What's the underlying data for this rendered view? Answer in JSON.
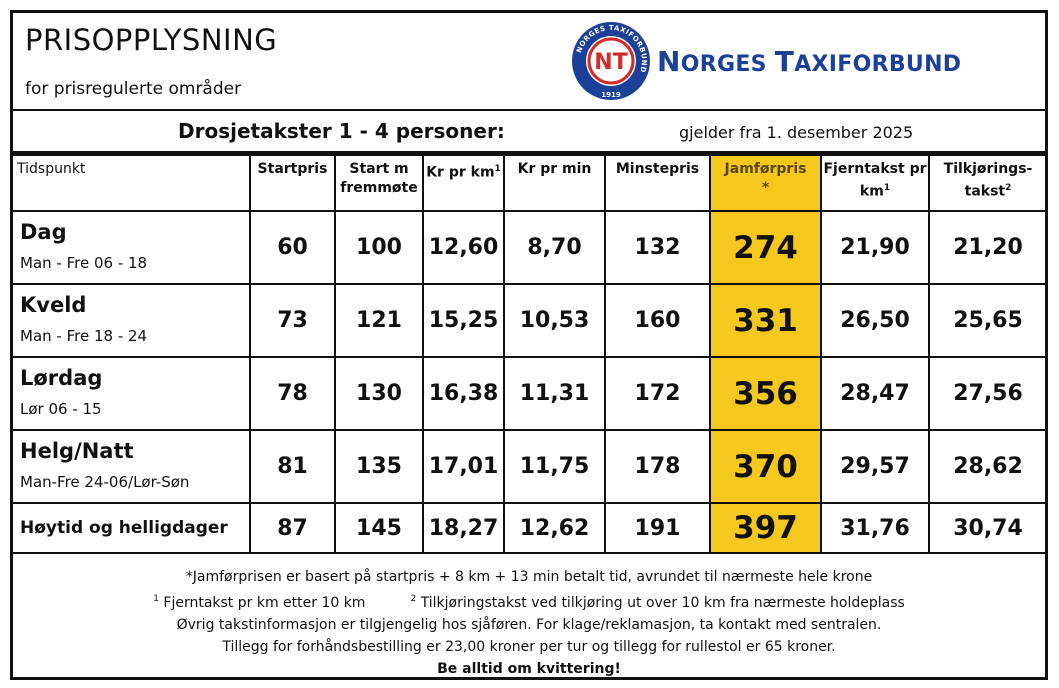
{
  "header": {
    "title": "PRISOPPLYSNING",
    "subtitle": "for prisregulerte områder",
    "brand_first": "N",
    "brand_rest_1": "ORGES ",
    "brand_t": "T",
    "brand_rest_2": "AXIFORBUND",
    "seal_ring_text": "NORGES TAXIFORBUND",
    "seal_year": "1919",
    "seal_monogram": "NT"
  },
  "subheading": {
    "title": "Drosjetakster 1 - 4 personer:",
    "valid_from": "gjelder fra 1. desember 2025"
  },
  "table": {
    "columns": [
      {
        "label": "Tidspunkt"
      },
      {
        "label": "Startpris"
      },
      {
        "label": "Start m fremmøte"
      },
      {
        "label": "Kr pr km",
        "sup": "1"
      },
      {
        "label": "Kr pr min"
      },
      {
        "label": "Minstepris"
      },
      {
        "label": "Jamførpris",
        "sub": "*"
      },
      {
        "label": "Fjerntakst pr km",
        "sup": "1"
      },
      {
        "label": "Tilkjørings-takst",
        "sup": "2"
      }
    ],
    "rows": [
      {
        "name": "Dag",
        "time": "Man - Fre 06 - 18",
        "values": [
          "60",
          "100",
          "12,60",
          "8,70",
          "132",
          "274",
          "21,90",
          "21,20"
        ]
      },
      {
        "name": "Kveld",
        "time": "Man - Fre 18 - 24",
        "values": [
          "73",
          "121",
          "15,25",
          "10,53",
          "160",
          "331",
          "26,50",
          "25,65"
        ]
      },
      {
        "name": "Lørdag",
        "time": "Lør 06 - 15",
        "values": [
          "78",
          "130",
          "16,38",
          "11,31",
          "172",
          "356",
          "28,47",
          "27,56"
        ]
      },
      {
        "name": "Helg/Natt",
        "time": "Man-Fre 24-06/Lør-Søn",
        "values": [
          "81",
          "135",
          "17,01",
          "11,75",
          "178",
          "370",
          "29,57",
          "28,62"
        ]
      },
      {
        "name": "Høytid og helligdager",
        "time": "",
        "values": [
          "87",
          "145",
          "18,27",
          "12,62",
          "191",
          "397",
          "31,76",
          "30,74"
        ]
      }
    ]
  },
  "footer": {
    "note_star": "*Jamførprisen er basert på startpris + 8 km + 13 min betalt tid, avrundet til nærmeste hele krone",
    "note_1_mark": "1",
    "note_1": "Fjerntakst pr km etter 10 km",
    "note_2_mark": "2",
    "note_2": "Tilkjøringstakst ved tilkjøring ut over 10 km fra nærmeste holdeplass",
    "note_info": "Øvrig takstinformasjon er tilgjengelig hos sjåføren. For klage/reklamasjon, ta kontakt med sentralen.",
    "note_extra": "Tillegg for forhåndsbestilling er 23,00 kroner per tur og tillegg for rullestol er 65 kroner.",
    "note_receipt": "Be alltid om kvittering!"
  },
  "colors": {
    "highlight": "#f5c81e",
    "brand": "#1c3f98",
    "seal_red": "#d32a2a"
  }
}
